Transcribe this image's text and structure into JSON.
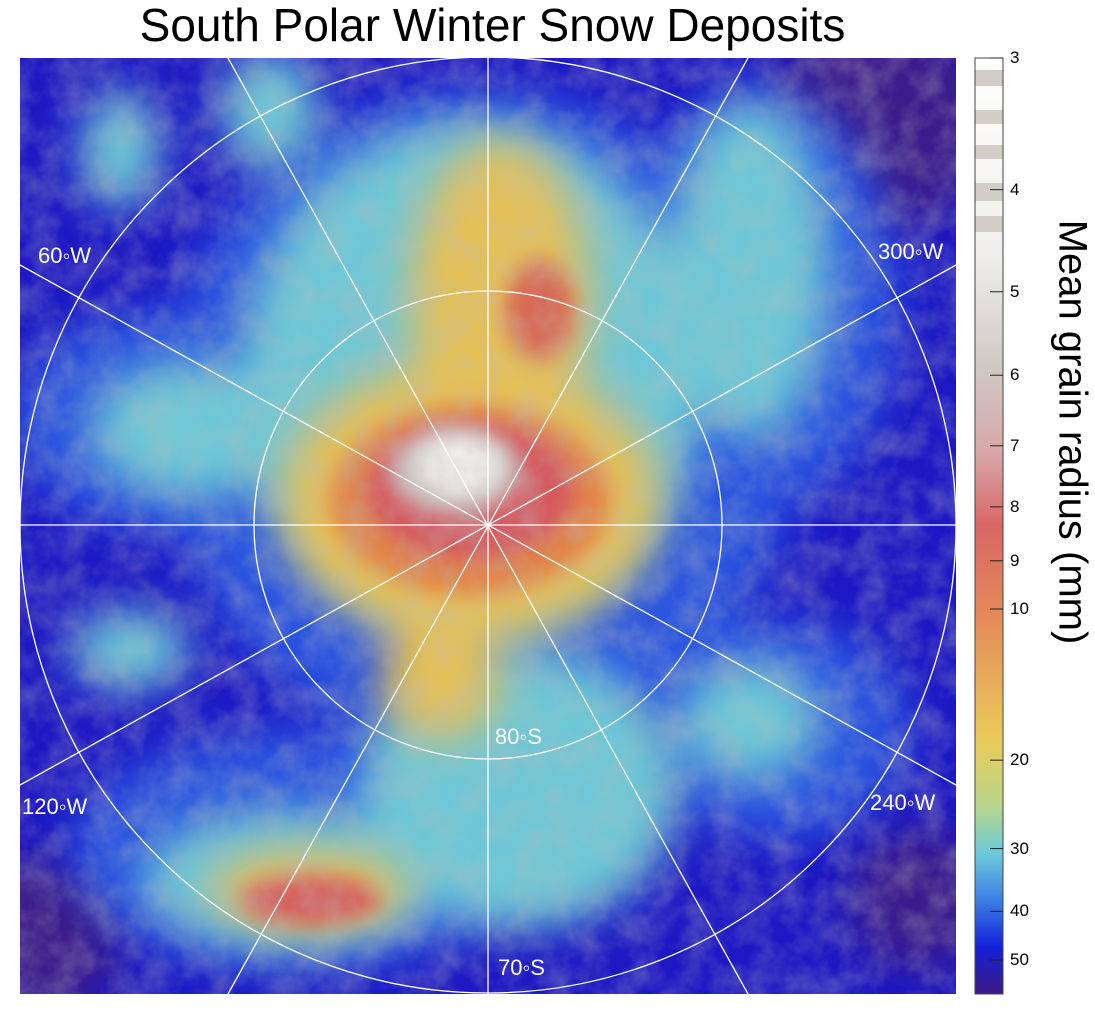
{
  "title": "South Polar Winter Snow Deposits",
  "grid_labels": {
    "lon_60w": "60◦W",
    "lon_300w": "300◦W",
    "lon_120w": "120◦W",
    "lon_240w": "240◦W",
    "lat_80s": "80◦S",
    "lat_70s": "70◦S"
  },
  "colorbar": {
    "label": "Mean grain radius (mm)",
    "scale": "log",
    "ticks": [
      "3",
      "4",
      "5",
      "6",
      "7",
      "8",
      "9",
      "10",
      "20",
      "30",
      "40",
      "50"
    ],
    "tick_values": [
      3,
      4,
      5,
      6,
      7,
      8,
      9,
      10,
      20,
      30,
      40,
      50
    ]
  },
  "colors": {
    "deep": "#1a14c8",
    "blue": "#2a52e0",
    "cyan": "#6ecad8",
    "yellow": "#e6bf55",
    "orange": "#e58a4a",
    "red": "#d6585e",
    "grey": "#c9c3c0",
    "white": "#f4f2f0",
    "purple": "#3e1c86"
  }
}
